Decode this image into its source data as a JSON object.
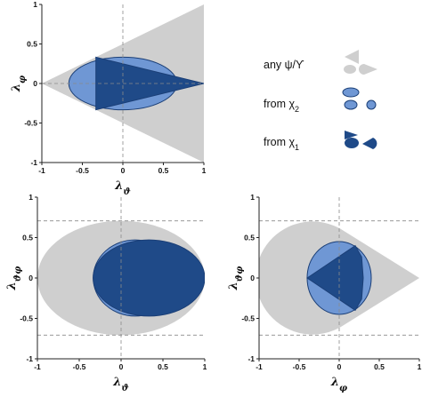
{
  "colors": {
    "gray": "#cfcfcf",
    "light_blue": "#6f97d4",
    "dark_blue": "#1f4a88",
    "stroke": "#1b3f77",
    "guide": "#8a8a8a"
  },
  "legend": [
    {
      "label": "any ψ/ϒ",
      "color": "#cfcfcf"
    },
    {
      "label": "from χ₂",
      "color": "#6f97d4"
    },
    {
      "label": "from χ₁",
      "color": "#1f4a88"
    }
  ],
  "chart_data": [
    {
      "type": "area",
      "xlabel": "λϑ",
      "ylabel": "λφ",
      "xlim": [
        -1,
        1
      ],
      "ylim": [
        -1,
        1
      ],
      "xticks": [
        "-1",
        "-0.5",
        "0",
        "0.5",
        "1"
      ],
      "yticks": [
        "-1",
        "-0.5",
        "0",
        "0.5",
        "1"
      ],
      "guides": {
        "x": [
          0
        ],
        "y": [
          0
        ]
      },
      "regions": [
        {
          "name": "any ψ/ϒ",
          "shape": "polygon",
          "points": [
            [
              -1,
              0
            ],
            [
              1,
              1
            ],
            [
              1,
              -1
            ]
          ]
        },
        {
          "name": "from χ₂",
          "shape": "ellipse",
          "center": [
            0,
            0
          ],
          "radii": [
            0.667,
            0.333
          ]
        },
        {
          "name": "from χ₁",
          "shape": "polygon",
          "points": [
            [
              -0.333,
              0.333
            ],
            [
              -0.333,
              -0.333
            ],
            [
              1,
              0
            ]
          ]
        }
      ]
    },
    {
      "type": "area",
      "xlabel": "λϑ",
      "ylabel": "λϑφ",
      "xlim": [
        -1,
        1
      ],
      "ylim": [
        -1,
        1
      ],
      "xticks": [
        "-1",
        "-0.5",
        "0",
        "0.5",
        "1"
      ],
      "yticks": [
        "-1",
        "-0.5",
        "0",
        "0.5",
        "1"
      ],
      "guides": {
        "x": [
          0
        ],
        "y": [
          0.707,
          -0.707
        ]
      },
      "regions": [
        {
          "name": "any ψ/ϒ",
          "shape": "ellipse",
          "center": [
            0,
            0
          ],
          "radii": [
            1,
            0.707
          ]
        },
        {
          "name": "from χ₂",
          "shape": "ellipse",
          "center": [
            0.167,
            0
          ],
          "radii": [
            0.5,
            0.471
          ]
        },
        {
          "name": "from χ₁",
          "shape": "ellipse",
          "center": [
            0.333,
            0
          ],
          "radii": [
            0.667,
            0.471
          ]
        }
      ]
    },
    {
      "type": "area",
      "xlabel": "λφ",
      "ylabel": "λϑφ",
      "xlim": [
        -1,
        1
      ],
      "ylim": [
        -1,
        1
      ],
      "xticks": [
        "-1",
        "-0.5",
        "0",
        "0.5",
        "1"
      ],
      "yticks": [
        "-1",
        "-0.5",
        "0",
        "0.5",
        "1"
      ],
      "guides": {
        "x": [
          0
        ],
        "y": [
          0.707,
          -0.707
        ]
      },
      "regions": [
        {
          "name": "any ψ/ϒ",
          "shape": "cone-disk",
          "disk_center": [
            -0.333,
            0
          ],
          "disk_radius": 0.707,
          "apex": [
            1,
            0
          ]
        },
        {
          "name": "from χ₂",
          "shape": "ellipse",
          "center": [
            0,
            0
          ],
          "radii": [
            0.4,
            0.45
          ]
        },
        {
          "name": "from χ₁",
          "shape": "polygon",
          "points": [
            [
              -0.4,
              0
            ],
            [
              0.2,
              0.4
            ],
            [
              0.28,
              0.26
            ],
            [
              0.3,
              0
            ],
            [
              0.28,
              -0.26
            ],
            [
              0.2,
              -0.4
            ]
          ]
        }
      ]
    }
  ]
}
